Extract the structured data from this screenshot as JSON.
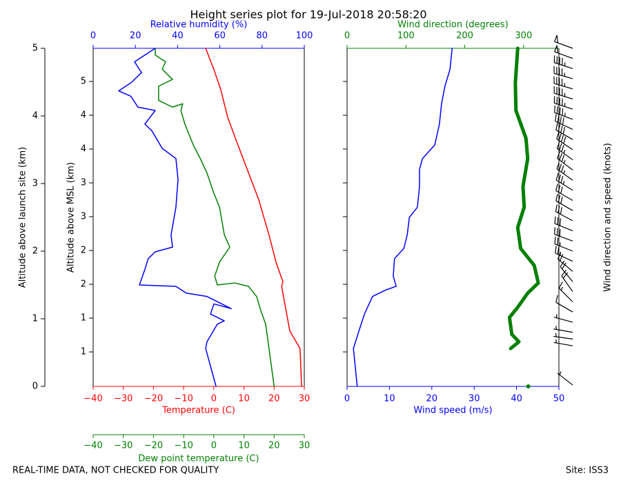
{
  "title": "Height series plot for 19-Jul-2018 20:58:20",
  "footer": "REAL-TIME DATA, NOT CHECKED FOR QUALITY",
  "site": "Site: ISS3",
  "chart_data": [
    {
      "type": "line",
      "xlabel": "Temperature (C)",
      "xcolor": "#ff0000",
      "xlim": [
        -40,
        30
      ],
      "xticks": [
        {
          "value": -40,
          "label": "−40"
        },
        {
          "value": -30,
          "label": "−30"
        },
        {
          "value": -20,
          "label": "−20"
        },
        {
          "value": -10,
          "label": "−10"
        },
        0,
        10,
        20,
        30
      ],
      "x2label": "Relative humidity (%)",
      "x2color": "#0000ff",
      "x2lim": [
        0,
        100
      ],
      "x2ticks": [
        0,
        20,
        40,
        60,
        80,
        100
      ],
      "x3label": "Dew point temperature (C)",
      "x3color": "#008000",
      "x3lim": [
        -40,
        30
      ],
      "x3ticks": [
        {
          "value": -40,
          "label": "−40"
        },
        {
          "value": -30,
          "label": "−30"
        },
        {
          "value": -20,
          "label": "−20"
        },
        {
          "value": -10,
          "label": "−10"
        },
        0,
        10,
        20,
        30
      ],
      "ylabel": "Altitude above launch site (km)",
      "ylim": [
        0,
        5
      ],
      "yticks": [
        0,
        1,
        2,
        3,
        4,
        5
      ],
      "y2label": "Altitude above MSL (km)",
      "y2lim": [
        0.49,
        5.49
      ],
      "y2ticks": [
        1,
        {
          "value": 1.5,
          "label": "1"
        },
        2,
        {
          "value": 2.5,
          "label": "2"
        },
        3,
        {
          "value": 3.5,
          "label": "3"
        },
        4,
        {
          "value": 4.5,
          "label": "4"
        },
        5
      ],
      "series": [
        {
          "color": "#ff0000",
          "axis": "x",
          "values": [
            29.1,
            28.6,
            25.2,
            22.9,
            22.5,
            22.9,
            20.6,
            18.3,
            14.9,
            11.5,
            8.0,
            4.6,
            2.3,
            0.0,
            -2.7
          ],
          "heights": [
            0,
            0.56,
            0.82,
            1.38,
            1.48,
            1.55,
            1.84,
            2.24,
            2.76,
            3.16,
            3.57,
            3.98,
            4.39,
            4.69,
            5.0
          ]
        },
        {
          "color": "#008000",
          "axis": "x3",
          "values": [
            20.0,
            18.3,
            17.2,
            15.6,
            14.2,
            11.5,
            6.9,
            1.2,
            0.3,
            1.9,
            5.3,
            3.5,
            1.9,
            0,
            -2.3,
            -4.5,
            -6.8,
            -9.6,
            -10.9,
            -10.3,
            -13.7,
            -18.3,
            -18.3,
            -13.7,
            -17.1,
            -16.0,
            -19.4,
            -19.4
          ],
          "heights": [
            0,
            0.56,
            0.92,
            1.12,
            1.33,
            1.48,
            1.53,
            1.5,
            1.63,
            1.84,
            2.06,
            2.24,
            2.65,
            2.86,
            3.16,
            3.37,
            3.57,
            3.88,
            4.08,
            4.18,
            4.13,
            4.23,
            4.44,
            4.54,
            4.69,
            4.8,
            4.9,
            5.0
          ]
        },
        {
          "color": "#0000ff",
          "axis": "x2",
          "values": [
            58.2,
            53.3,
            53.9,
            58.8,
            62.1,
            55.6,
            57.2,
            65.4,
            53.9,
            44.1,
            39.2,
            21.9,
            24.5,
            26.1,
            29.4,
            37.6,
            36.9,
            39.2,
            40.2,
            39.2,
            32.7,
            27.8,
            24.5,
            29.4,
            21.2,
            17.9,
            12.1,
            17.9,
            22.9,
            19.6,
            24.5,
            29.4
          ],
          "heights": [
            0,
            0.56,
            0.66,
            0.92,
            0.97,
            1.07,
            1.22,
            1.15,
            1.33,
            1.38,
            1.48,
            1.5,
            1.73,
            1.89,
            1.99,
            2.06,
            2.24,
            2.65,
            3.06,
            3.37,
            3.52,
            3.78,
            3.88,
            4.08,
            4.13,
            4.29,
            4.37,
            4.49,
            4.64,
            4.8,
            4.9,
            5.0
          ]
        }
      ]
    },
    {
      "type": "line",
      "xlabel": "Wind speed (m/s)",
      "xcolor": "#0000ff",
      "xlim": [
        0,
        50
      ],
      "xticks": [
        0,
        10,
        20,
        30,
        40,
        50
      ],
      "x2label": "Wind direction (degrees)",
      "x2color": "#008000",
      "x2lim": [
        0,
        360
      ],
      "x2ticks": [
        0,
        100,
        200,
        300
      ],
      "ylim": [
        0,
        5
      ],
      "series": [
        {
          "color": "#0000ff",
          "axis": "x",
          "width": 1.5,
          "values": [
            2.4,
            1.5,
            2.8,
            4.1,
            6.0,
            9.3,
            11.6,
            10.9,
            11.2,
            13.4,
            14.2,
            14.7,
            16.6,
            17.1,
            17.1,
            17.8,
            20.7,
            21.8,
            22.3,
            23.1,
            24.3,
            24.8
          ],
          "heights": [
            0,
            0.56,
            0.82,
            1.07,
            1.33,
            1.43,
            1.48,
            1.63,
            1.89,
            2.04,
            2.24,
            2.5,
            2.65,
            2.96,
            3.21,
            3.37,
            3.57,
            3.88,
            4.18,
            4.44,
            4.69,
            5.0
          ]
        },
        {
          "color": "#008000",
          "axis": "x2",
          "width": 5,
          "values": [
            308,
            null,
            278,
            292,
            280,
            276,
            290,
            307,
            325,
            318,
            295,
            290,
            301,
            299,
            307,
            304,
            287,
            286,
            290
          ],
          "heights": [
            0,
            null,
            0.56,
            0.66,
            0.77,
            1.02,
            1.17,
            1.38,
            1.53,
            1.79,
            2.04,
            2.35,
            2.65,
            2.96,
            3.37,
            3.67,
            4.08,
            4.49,
            5.0
          ]
        }
      ],
      "barbs": {
        "label": "Wind direction and speed (knots)",
        "heights": [
          0.02,
          0.6,
          0.7,
          0.8,
          0.95,
          1.1,
          1.25,
          1.4,
          1.55,
          1.7,
          1.85,
          2.0,
          2.15,
          2.3,
          2.45,
          2.6,
          2.75,
          2.9,
          3.05,
          3.2,
          3.35,
          3.5,
          3.65,
          3.8,
          3.95,
          4.1,
          4.25,
          4.4,
          4.55,
          4.7,
          4.85,
          5.0
        ],
        "directions": [
          308,
          280,
          278,
          280,
          285,
          300,
          315,
          325,
          320,
          310,
          295,
          292,
          290,
          292,
          298,
          300,
          300,
          302,
          305,
          307,
          306,
          304,
          300,
          295,
          290,
          288,
          287,
          286,
          286,
          288,
          290,
          290
        ],
        "speeds": [
          5,
          3,
          3,
          5,
          7,
          9,
          13,
          20,
          22,
          21,
          23,
          26,
          28,
          28,
          29,
          30,
          32,
          33,
          33,
          33,
          34,
          38,
          40,
          42,
          43,
          43,
          44,
          45,
          46,
          47,
          48,
          48
        ]
      }
    }
  ]
}
